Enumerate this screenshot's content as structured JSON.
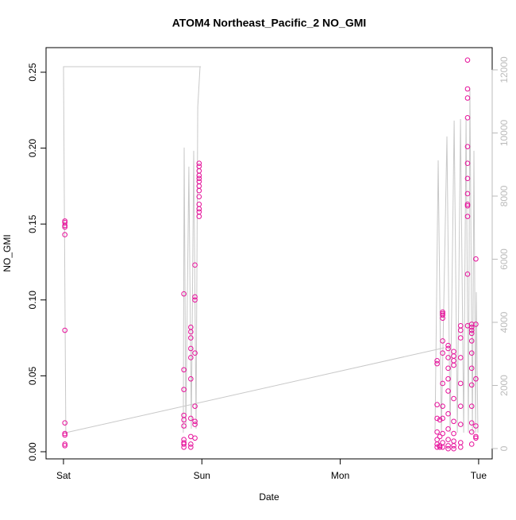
{
  "chart_data": {
    "type": "scatter",
    "title": "ATOM4 Northeast_Pacific_2 NO_GMI",
    "xlabel": "Date",
    "ylabel": "NO_GMI",
    "xlim": [
      -0.126,
      3.098
    ],
    "xticks": [
      {
        "value": 0,
        "label": "Sat"
      },
      {
        "value": 1,
        "label": "Sun"
      },
      {
        "value": 2,
        "label": "Mon"
      },
      {
        "value": 3,
        "label": "Tue"
      }
    ],
    "ylim": [
      -0.0047,
      0.2662
    ],
    "yticks": [
      {
        "value": 0,
        "label": "0.00"
      },
      0.05,
      {
        "value": 0.1,
        "label": "0.10"
      },
      0.15,
      {
        "value": 0.2,
        "label": "0.20"
      },
      0.25
    ],
    "y2lim": [
      -327,
      12704
    ],
    "y2ticks": [
      0,
      2000,
      4000,
      6000,
      8000,
      10000,
      12000
    ],
    "y2color": "#bbbbbb",
    "series": [
      {
        "color": "#e6109a",
        "x": [
          0.01,
          0.01,
          0.01,
          0.01,
          0.01,
          0.01,
          0.01,
          0.01,
          0.01,
          0.01,
          0.01,
          0.87,
          0.87,
          0.87,
          0.87,
          0.87,
          0.87,
          0.87,
          0.87,
          0.87,
          0.87,
          0.92,
          0.92,
          0.92,
          0.92,
          0.92,
          0.92,
          0.92,
          0.92,
          0.92,
          0.92,
          0.95,
          0.95,
          0.95,
          0.95,
          0.95,
          0.95,
          0.95,
          0.95,
          0.98,
          0.98,
          0.98,
          0.98,
          0.98,
          0.98,
          0.98,
          0.98,
          0.98,
          0.98,
          0.98,
          0.98,
          0.98,
          2.7,
          2.7,
          2.7,
          2.7,
          2.7,
          2.7,
          2.7,
          2.7,
          2.72,
          2.72,
          2.72,
          2.72,
          2.74,
          2.74,
          2.74,
          2.74,
          2.74,
          2.74,
          2.74,
          2.74,
          2.74,
          2.74,
          2.74,
          2.74,
          2.78,
          2.78,
          2.78,
          2.78,
          2.78,
          2.78,
          2.78,
          2.78,
          2.78,
          2.78,
          2.78,
          2.82,
          2.82,
          2.82,
          2.82,
          2.82,
          2.82,
          2.82,
          2.82,
          2.82,
          2.82,
          2.87,
          2.87,
          2.87,
          2.87,
          2.87,
          2.87,
          2.87,
          2.87,
          2.87,
          2.92,
          2.92,
          2.92,
          2.92,
          2.92,
          2.92,
          2.92,
          2.92,
          2.92,
          2.92,
          2.92,
          2.92,
          2.92,
          2.95,
          2.95,
          2.95,
          2.95,
          2.95,
          2.95,
          2.95,
          2.95,
          2.95,
          2.95,
          2.95,
          2.95,
          2.98,
          2.98,
          2.98,
          2.98,
          2.98,
          2.98
        ],
        "values": [
          0.152,
          0.151,
          0.149,
          0.148,
          0.143,
          0.08,
          0.019,
          0.012,
          0.011,
          0.005,
          0.004,
          0.104,
          0.054,
          0.041,
          0.024,
          0.021,
          0.017,
          0.008,
          0.006,
          0.005,
          0.003,
          0.082,
          0.079,
          0.075,
          0.068,
          0.062,
          0.048,
          0.022,
          0.01,
          0.005,
          0.003,
          0.102,
          0.1,
          0.123,
          0.065,
          0.03,
          0.02,
          0.018,
          0.009,
          0.16,
          0.175,
          0.178,
          0.18,
          0.182,
          0.185,
          0.188,
          0.19,
          0.172,
          0.168,
          0.163,
          0.158,
          0.155,
          0.06,
          0.058,
          0.031,
          0.022,
          0.013,
          0.008,
          0.005,
          0.003,
          0.021,
          0.01,
          0.004,
          0.003,
          0.092,
          0.091,
          0.09,
          0.088,
          0.073,
          0.065,
          0.045,
          0.03,
          0.022,
          0.012,
          0.006,
          0.003,
          0.07,
          0.068,
          0.062,
          0.055,
          0.048,
          0.04,
          0.025,
          0.015,
          0.008,
          0.004,
          0.002,
          0.066,
          0.063,
          0.06,
          0.057,
          0.035,
          0.02,
          0.012,
          0.007,
          0.004,
          0.002,
          0.083,
          0.08,
          0.075,
          0.062,
          0.045,
          0.03,
          0.018,
          0.006,
          0.003,
          0.258,
          0.239,
          0.233,
          0.22,
          0.201,
          0.19,
          0.18,
          0.17,
          0.163,
          0.162,
          0.155,
          0.117,
          0.083,
          0.084,
          0.082,
          0.08,
          0.078,
          0.073,
          0.065,
          0.055,
          0.044,
          0.03,
          0.019,
          0.013,
          0.005,
          0.127,
          0.084,
          0.048,
          0.017,
          0.01,
          0.009
        ]
      },
      {
        "type": "line",
        "axis": "y2",
        "color": "#c8c8c8",
        "x": [
          0.993,
          0,
          0.006,
          0.017,
          2.754,
          null,
          0.866,
          0.872,
          0.884,
          0.906,
          0.924,
          0.941,
          0.958,
          0.97,
          0.987,
          null,
          2.685,
          2.708,
          2.731,
          2.771,
          2.794,
          2.823,
          2.846,
          2.869,
          2.892,
          2.909,
          2.926,
          2.937,
          2.955,
          2.966,
          2.978,
          2.983,
          2.995
        ],
        "values": [
          12100,
          12100,
          7925,
          503,
          3195,
          null,
          503,
          9536,
          629,
          8932,
          629,
          9435,
          629,
          10819,
          12100,
          null,
          503,
          9133,
          503,
          9888,
          503,
          10391,
          503,
          10441,
          503,
          10467,
          503,
          11423,
          503,
          9435,
          503,
          4957,
          503
        ]
      }
    ]
  }
}
